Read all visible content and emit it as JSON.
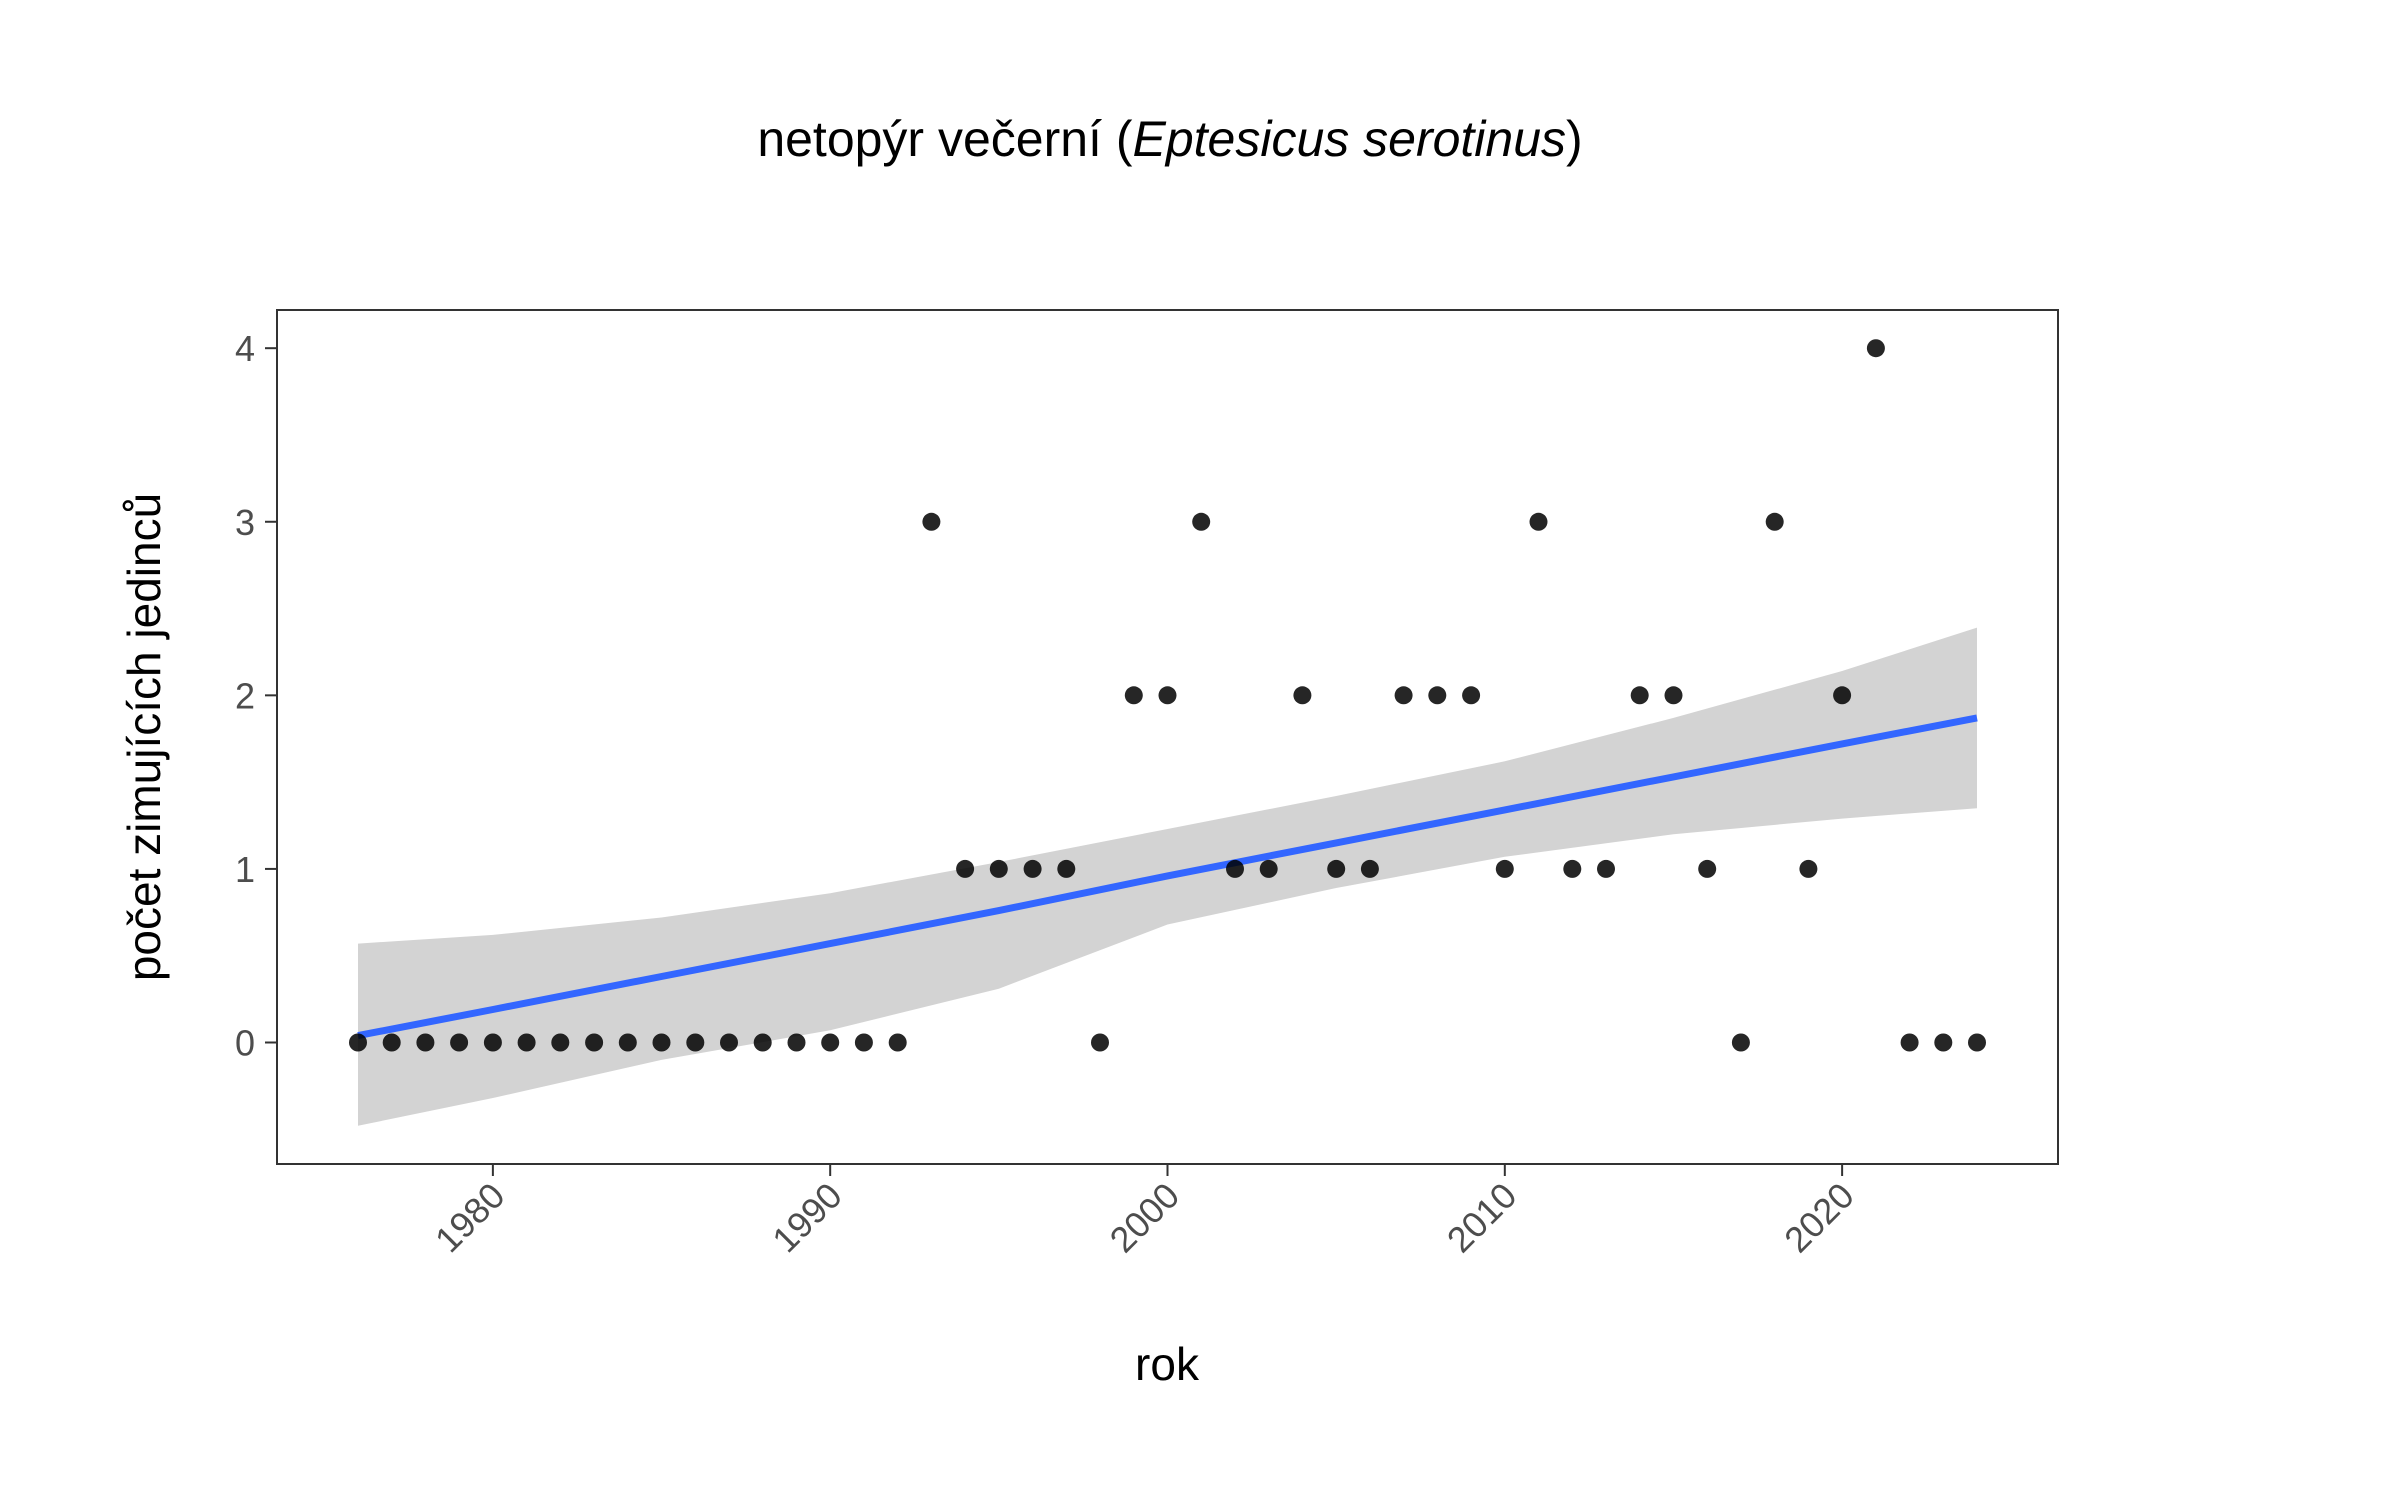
{
  "chart_data": {
    "type": "scatter",
    "title": {
      "prefix": "netopýr večerní (",
      "italic": "Eptesicus serotinus",
      "suffix": ")"
    },
    "xlabel": "rok",
    "ylabel": "počet zimujících jedinců",
    "xlim": [
      1973.6,
      2026.4
    ],
    "ylim": [
      -0.7,
      4.22
    ],
    "x_ticks": [
      1980,
      1990,
      2000,
      2010,
      2020
    ],
    "x_tick_labels": [
      "1980",
      "1990",
      "2000",
      "2010",
      "2020"
    ],
    "y_ticks": [
      0,
      1,
      2,
      3,
      4
    ],
    "y_tick_labels": [
      "0",
      "1",
      "2",
      "3",
      "4"
    ],
    "grid": false,
    "point_color": "#000000",
    "series": [
      {
        "x": [
          1976,
          1977,
          1978,
          1979,
          1980,
          1981,
          1982,
          1983,
          1984,
          1985,
          1986,
          1987,
          1988,
          1989,
          1990,
          1991,
          1992,
          1993,
          1994,
          1995,
          1996,
          1997,
          1998,
          1999,
          2000,
          2001,
          2002,
          2003,
          2004,
          2005,
          2006,
          2007,
          2008,
          2009,
          2010,
          2011,
          2012,
          2013,
          2014,
          2015,
          2016,
          2017,
          2018,
          2019,
          2020,
          2021,
          2022,
          2023,
          2024
        ],
        "y": [
          0,
          0,
          0,
          0,
          0,
          0,
          0,
          0,
          0,
          0,
          0,
          0,
          0,
          0,
          0,
          0,
          0,
          3,
          1,
          1,
          1,
          1,
          0,
          2,
          2,
          3,
          1,
          1,
          2,
          1,
          1,
          2,
          2,
          2,
          1,
          3,
          1,
          1,
          2,
          2,
          1,
          0,
          3,
          1,
          2,
          4,
          0,
          0,
          0
        ]
      }
    ],
    "trend": {
      "method": "linear",
      "color": "#3366FF",
      "ribbon_color": "#d3d3d3",
      "x": [
        1976,
        1980,
        1985,
        1990,
        1995,
        2000,
        2005,
        2010,
        2015,
        2020,
        2024
      ],
      "y": [
        0.04,
        0.19,
        0.38,
        0.57,
        0.76,
        0.96,
        1.15,
        1.34,
        1.53,
        1.72,
        1.87
      ],
      "lower": [
        -0.48,
        -0.32,
        -0.1,
        0.07,
        0.31,
        0.68,
        0.89,
        1.07,
        1.2,
        1.29,
        1.35
      ],
      "upper": [
        0.57,
        0.62,
        0.72,
        0.86,
        1.04,
        1.23,
        1.42,
        1.62,
        1.87,
        2.14,
        2.39
      ]
    }
  }
}
